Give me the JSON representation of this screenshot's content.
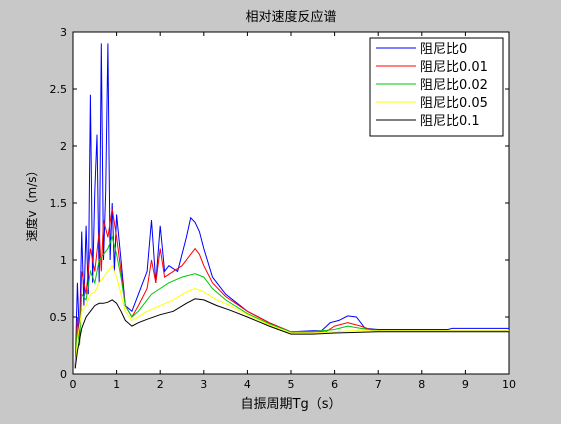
{
  "chart_data": {
    "type": "line",
    "title": "相对速度反应谱",
    "xlabel": "自振周期Tg（s）",
    "ylabel": "速度v（m/s）",
    "xlim": [
      0,
      10
    ],
    "ylim": [
      0,
      3
    ],
    "xticks": [
      "0",
      "1",
      "2",
      "3",
      "4",
      "5",
      "6",
      "7",
      "8",
      "9",
      "10"
    ],
    "yticks": [
      "0",
      "0.5",
      "1",
      "1.5",
      "2",
      "2.5",
      "3"
    ],
    "grid": false,
    "legend_position": "top-right",
    "series": [
      {
        "name": "阻尼比0",
        "color": "#0000ff",
        "points": [
          [
            0.05,
            0.05
          ],
          [
            0.1,
            0.8
          ],
          [
            0.15,
            0.3
          ],
          [
            0.2,
            1.25
          ],
          [
            0.25,
            0.6
          ],
          [
            0.3,
            1.3
          ],
          [
            0.35,
            0.7
          ],
          [
            0.4,
            2.45
          ],
          [
            0.45,
            0.8
          ],
          [
            0.5,
            1.6
          ],
          [
            0.55,
            2.1
          ],
          [
            0.6,
            0.8
          ],
          [
            0.65,
            2.9
          ],
          [
            0.7,
            1.0
          ],
          [
            0.75,
            1.6
          ],
          [
            0.8,
            2.9
          ],
          [
            0.85,
            1.0
          ],
          [
            0.9,
            1.5
          ],
          [
            0.95,
            0.9
          ],
          [
            1.0,
            1.4
          ],
          [
            1.1,
            1.0
          ],
          [
            1.2,
            0.6
          ],
          [
            1.35,
            0.55
          ],
          [
            1.5,
            0.7
          ],
          [
            1.7,
            0.9
          ],
          [
            1.8,
            1.35
          ],
          [
            1.9,
            0.8
          ],
          [
            2.0,
            1.3
          ],
          [
            2.1,
            0.9
          ],
          [
            2.2,
            0.95
          ],
          [
            2.4,
            0.9
          ],
          [
            2.6,
            1.2
          ],
          [
            2.7,
            1.37
          ],
          [
            2.8,
            1.33
          ],
          [
            2.9,
            1.25
          ],
          [
            3.0,
            1.1
          ],
          [
            3.2,
            0.85
          ],
          [
            3.5,
            0.7
          ],
          [
            4.0,
            0.55
          ],
          [
            4.5,
            0.45
          ],
          [
            5.0,
            0.37
          ],
          [
            5.5,
            0.38
          ],
          [
            5.7,
            0.38
          ],
          [
            5.9,
            0.45
          ],
          [
            6.1,
            0.47
          ],
          [
            6.3,
            0.51
          ],
          [
            6.5,
            0.5
          ],
          [
            6.7,
            0.4
          ],
          [
            7.0,
            0.39
          ],
          [
            8.6,
            0.39
          ],
          [
            8.7,
            0.4
          ],
          [
            10.0,
            0.4
          ]
        ]
      },
      {
        "name": "阻尼比0.01",
        "color": "#ff0000",
        "points": [
          [
            0.05,
            0.05
          ],
          [
            0.1,
            0.5
          ],
          [
            0.15,
            0.25
          ],
          [
            0.2,
            0.9
          ],
          [
            0.3,
            0.7
          ],
          [
            0.4,
            1.1
          ],
          [
            0.5,
            0.9
          ],
          [
            0.6,
            1.25
          ],
          [
            0.65,
            0.9
          ],
          [
            0.7,
            1.35
          ],
          [
            0.8,
            1.2
          ],
          [
            0.9,
            1.45
          ],
          [
            1.0,
            1.2
          ],
          [
            1.1,
            0.9
          ],
          [
            1.2,
            0.6
          ],
          [
            1.35,
            0.5
          ],
          [
            1.5,
            0.6
          ],
          [
            1.7,
            0.75
          ],
          [
            1.8,
            1.0
          ],
          [
            1.9,
            0.8
          ],
          [
            2.0,
            1.1
          ],
          [
            2.1,
            0.85
          ],
          [
            2.3,
            0.9
          ],
          [
            2.5,
            0.95
          ],
          [
            2.7,
            1.05
          ],
          [
            2.8,
            1.1
          ],
          [
            2.9,
            1.05
          ],
          [
            3.0,
            0.95
          ],
          [
            3.2,
            0.8
          ],
          [
            3.5,
            0.68
          ],
          [
            4.0,
            0.55
          ],
          [
            4.5,
            0.45
          ],
          [
            5.0,
            0.37
          ],
          [
            5.5,
            0.37
          ],
          [
            5.8,
            0.37
          ],
          [
            6.0,
            0.42
          ],
          [
            6.3,
            0.45
          ],
          [
            6.6,
            0.42
          ],
          [
            6.9,
            0.38
          ],
          [
            10.0,
            0.38
          ]
        ]
      },
      {
        "name": "阻尼比0.02",
        "color": "#00c800",
        "points": [
          [
            0.05,
            0.05
          ],
          [
            0.1,
            0.4
          ],
          [
            0.15,
            0.25
          ],
          [
            0.2,
            0.7
          ],
          [
            0.3,
            0.65
          ],
          [
            0.4,
            0.9
          ],
          [
            0.5,
            0.8
          ],
          [
            0.6,
            1.0
          ],
          [
            0.7,
            1.05
          ],
          [
            0.8,
            1.1
          ],
          [
            0.9,
            1.2
          ],
          [
            1.0,
            1.05
          ],
          [
            1.1,
            0.85
          ],
          [
            1.2,
            0.6
          ],
          [
            1.35,
            0.5
          ],
          [
            1.5,
            0.55
          ],
          [
            1.7,
            0.65
          ],
          [
            1.8,
            0.7
          ],
          [
            2.0,
            0.75
          ],
          [
            2.2,
            0.8
          ],
          [
            2.5,
            0.85
          ],
          [
            2.8,
            0.88
          ],
          [
            3.0,
            0.85
          ],
          [
            3.2,
            0.75
          ],
          [
            3.5,
            0.65
          ],
          [
            4.0,
            0.53
          ],
          [
            4.5,
            0.44
          ],
          [
            5.0,
            0.37
          ],
          [
            5.5,
            0.37
          ],
          [
            6.0,
            0.39
          ],
          [
            6.3,
            0.42
          ],
          [
            6.6,
            0.4
          ],
          [
            7.0,
            0.38
          ],
          [
            10.0,
            0.38
          ]
        ]
      },
      {
        "name": "阻尼比0.05",
        "color": "#ffff00",
        "points": [
          [
            0.05,
            0.05
          ],
          [
            0.1,
            0.3
          ],
          [
            0.2,
            0.55
          ],
          [
            0.3,
            0.6
          ],
          [
            0.4,
            0.7
          ],
          [
            0.5,
            0.72
          ],
          [
            0.6,
            0.8
          ],
          [
            0.7,
            0.85
          ],
          [
            0.8,
            0.9
          ],
          [
            0.9,
            0.95
          ],
          [
            1.0,
            0.85
          ],
          [
            1.1,
            0.7
          ],
          [
            1.2,
            0.55
          ],
          [
            1.35,
            0.47
          ],
          [
            1.5,
            0.5
          ],
          [
            1.7,
            0.55
          ],
          [
            2.0,
            0.6
          ],
          [
            2.3,
            0.65
          ],
          [
            2.6,
            0.72
          ],
          [
            2.8,
            0.75
          ],
          [
            3.0,
            0.72
          ],
          [
            3.3,
            0.65
          ],
          [
            3.6,
            0.6
          ],
          [
            4.0,
            0.52
          ],
          [
            4.5,
            0.43
          ],
          [
            5.0,
            0.36
          ],
          [
            5.5,
            0.36
          ],
          [
            6.0,
            0.37
          ],
          [
            6.4,
            0.38
          ],
          [
            7.0,
            0.38
          ],
          [
            10.0,
            0.38
          ]
        ]
      },
      {
        "name": "阻尼比0.1",
        "color": "#000000",
        "points": [
          [
            0.05,
            0.05
          ],
          [
            0.1,
            0.2
          ],
          [
            0.2,
            0.4
          ],
          [
            0.3,
            0.5
          ],
          [
            0.4,
            0.55
          ],
          [
            0.5,
            0.6
          ],
          [
            0.6,
            0.62
          ],
          [
            0.7,
            0.62
          ],
          [
            0.8,
            0.63
          ],
          [
            0.9,
            0.65
          ],
          [
            1.0,
            0.62
          ],
          [
            1.1,
            0.55
          ],
          [
            1.2,
            0.47
          ],
          [
            1.35,
            0.42
          ],
          [
            1.5,
            0.45
          ],
          [
            1.7,
            0.48
          ],
          [
            2.0,
            0.52
          ],
          [
            2.3,
            0.55
          ],
          [
            2.6,
            0.62
          ],
          [
            2.8,
            0.66
          ],
          [
            3.0,
            0.65
          ],
          [
            3.3,
            0.6
          ],
          [
            3.6,
            0.56
          ],
          [
            4.0,
            0.5
          ],
          [
            4.5,
            0.42
          ],
          [
            5.0,
            0.35
          ],
          [
            5.5,
            0.35
          ],
          [
            6.0,
            0.36
          ],
          [
            7.0,
            0.37
          ],
          [
            10.0,
            0.37
          ]
        ]
      }
    ]
  }
}
